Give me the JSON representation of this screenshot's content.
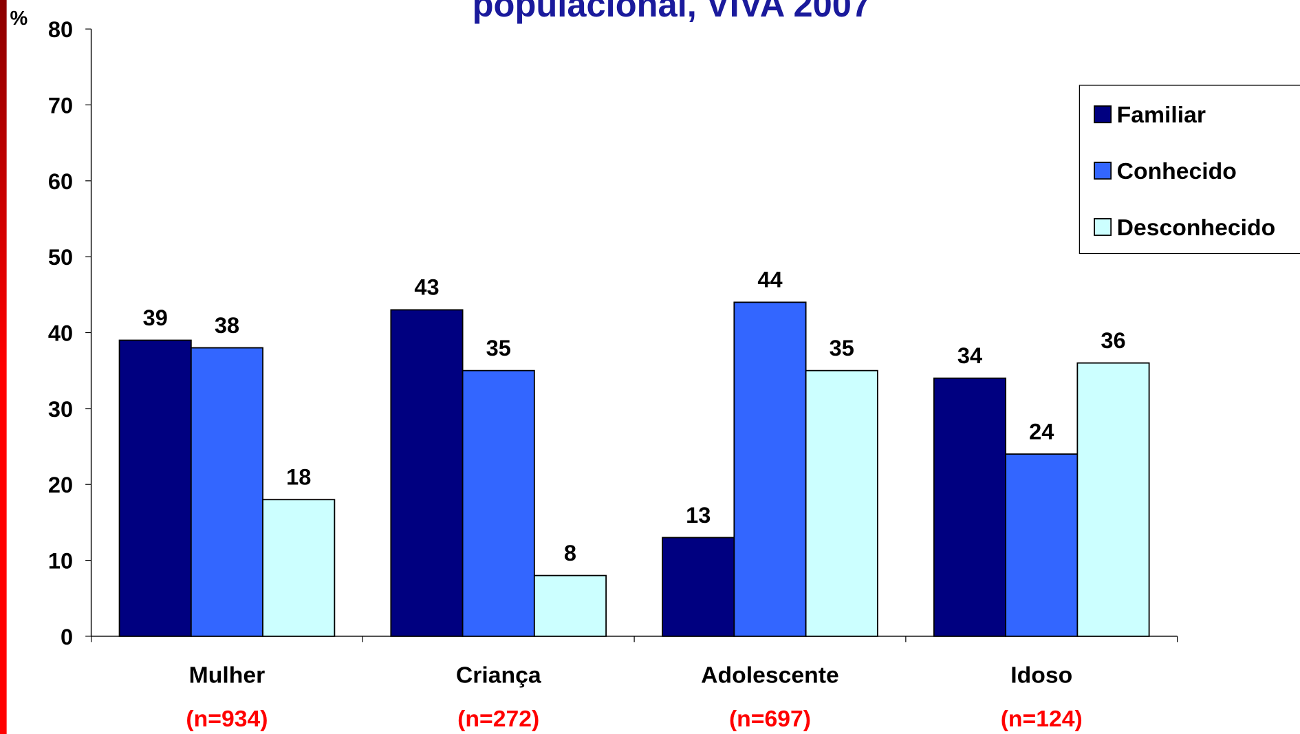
{
  "chart_data": {
    "type": "bar",
    "title": "populacional, VIVA 2007",
    "y_label": "%",
    "categories": [
      "Mulher",
      "Criança",
      "Adolescente",
      "Idoso"
    ],
    "sample_sizes": [
      "(n=934)",
      "(n=272)",
      "(n=697)",
      "(n=124)"
    ],
    "series": [
      {
        "name": "Familiar",
        "color": "#000080",
        "values": [
          39,
          43,
          13,
          34
        ]
      },
      {
        "name": "Conhecido",
        "color": "#3366ff",
        "values": [
          38,
          35,
          44,
          24
        ]
      },
      {
        "name": "Desconhecido",
        "color": "#ccffff",
        "values": [
          18,
          8,
          35,
          36
        ]
      }
    ],
    "ylim": [
      0,
      80
    ],
    "yticks": [
      0,
      10,
      20,
      30,
      40,
      50,
      60,
      70,
      80
    ],
    "legend": "upper right"
  }
}
